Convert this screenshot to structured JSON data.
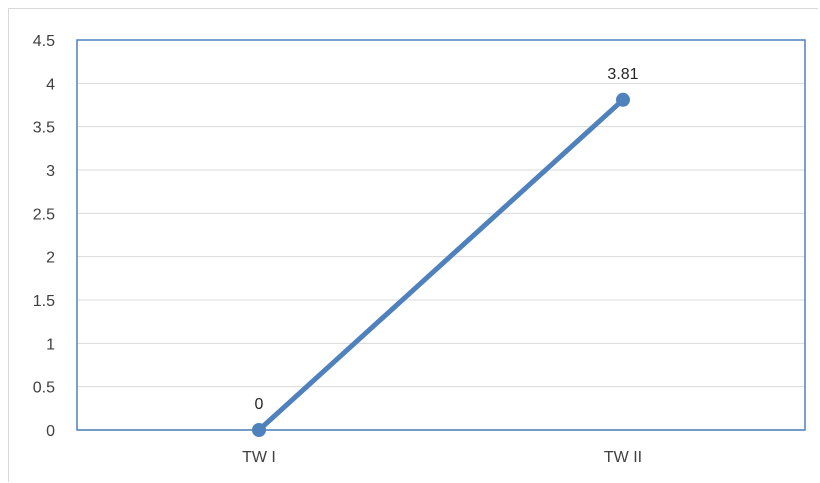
{
  "chart_data": {
    "type": "line",
    "categories": [
      "TW I",
      "TW II"
    ],
    "series": [
      {
        "values": [
          0,
          3.81
        ],
        "data_labels": [
          "0",
          "3.81"
        ]
      }
    ],
    "ylim": [
      0,
      4.5
    ],
    "yticks": [
      "0",
      "0.5",
      "1",
      "1.5",
      "2",
      "2.5",
      "3",
      "3.5",
      "4",
      "4.5"
    ],
    "grid": true,
    "colors": {
      "series": "#4f81bd",
      "grid": "#d9d9d9",
      "plot_border": "#4f81bd"
    }
  }
}
